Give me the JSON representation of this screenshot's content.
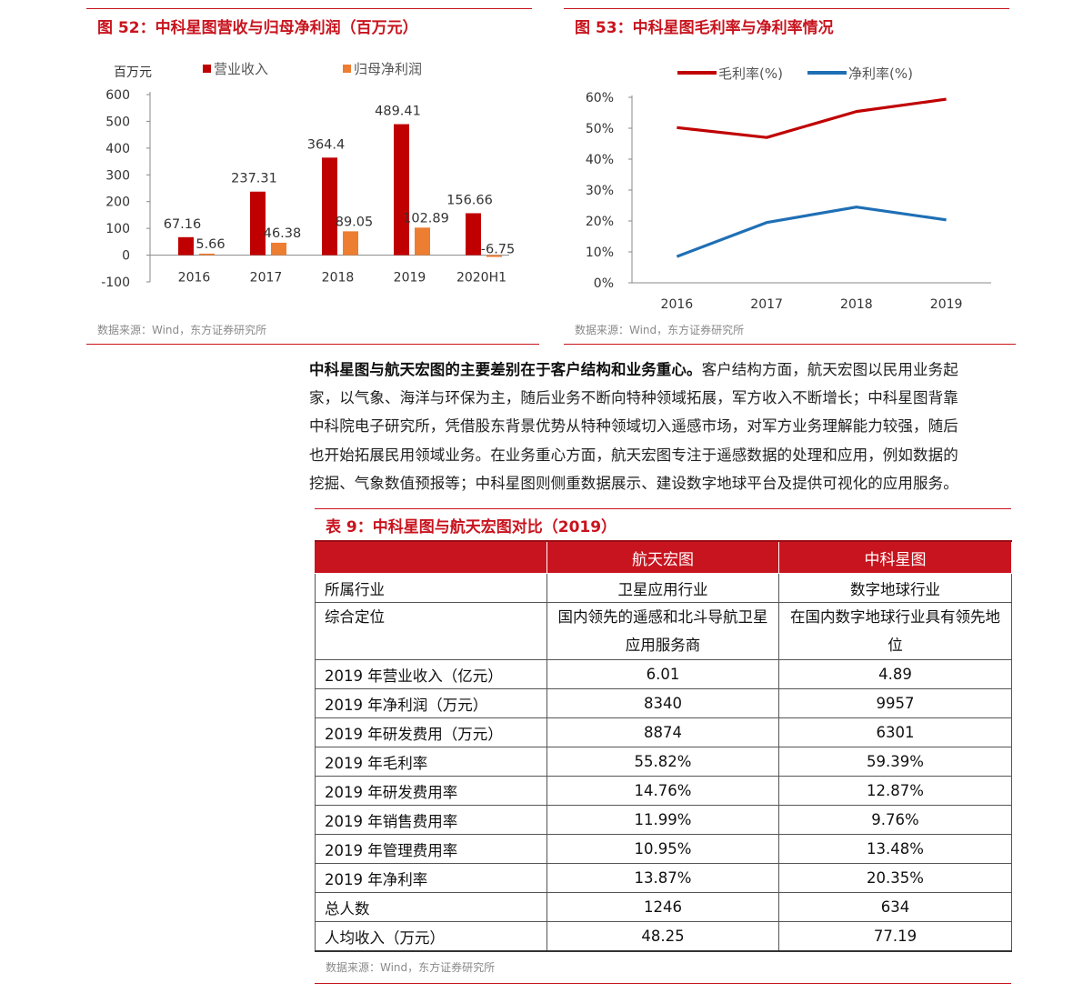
{
  "fig52": {
    "title": "图 52：中科星图营收与归母净利润（百万元）",
    "source": "数据来源：Wind，东方证券研究所",
    "unit_label": "百万元",
    "legend": [
      "营业收入",
      "归母净利润"
    ]
  },
  "fig53": {
    "title": "图 53：中科星图毛利率与净利率情况",
    "source": "数据来源：Wind，东方证券研究所",
    "legend": [
      "毛利率(%)",
      "净利率(%)"
    ]
  },
  "chart_data": [
    {
      "type": "bar",
      "title": "图 52：中科星图营收与归母净利润（百万元）",
      "ylabel": "百万元",
      "categories": [
        "2016",
        "2017",
        "2018",
        "2019",
        "2020H1"
      ],
      "series": [
        {
          "name": "营业收入",
          "color": "#c00000",
          "values": [
            67.16,
            237.31,
            364.4,
            489.41,
            156.66
          ]
        },
        {
          "name": "归母净利润",
          "color": "#ed7d31",
          "values": [
            5.66,
            46.38,
            89.05,
            102.89,
            -6.75
          ]
        }
      ],
      "ylim": [
        -100,
        600
      ],
      "yticks": [
        "-100",
        "0",
        "100",
        "200",
        "300",
        "400",
        "500",
        "600"
      ],
      "grid": false,
      "legend_position": "top"
    },
    {
      "type": "line",
      "title": "图 53：中科星图毛利率与净利率情况",
      "categories": [
        "2016",
        "2017",
        "2018",
        "2019"
      ],
      "series": [
        {
          "name": "毛利率(%)",
          "color": "#c00000",
          "values": [
            50.2,
            47.0,
            55.4,
            59.39
          ]
        },
        {
          "name": "净利率(%)",
          "color": "#1f6fb5",
          "values": [
            8.5,
            19.5,
            24.5,
            20.35
          ]
        }
      ],
      "ylim": [
        0,
        60
      ],
      "yticks": [
        "0%",
        "10%",
        "20%",
        "30%",
        "40%",
        "50%",
        "60%"
      ],
      "grid": false,
      "legend_position": "top"
    }
  ],
  "paragraph": {
    "lines": [
      {
        "bold": "中科星图与航天宏图的主要差别在于客户结构和业务重心。",
        "text": "客户结构方面，航天宏图以民用业务起"
      },
      {
        "bold": "",
        "text": "家，以气象、海洋与环保为主，随后业务不断向特种领域拓展，军方收入不断增长；中科星图背靠"
      },
      {
        "bold": "",
        "text": "中科院电子研究所，凭借股东背景优势从特种领域切入遥感市场，对军方业务理解能力较强，随后"
      },
      {
        "bold": "",
        "text": "也开始拓展民用领域业务。在业务重心方面，航天宏图专注于遥感数据的处理和应用，例如数据的"
      },
      {
        "bold": "",
        "text": "挖掘、气象数值预报等；中科星图则侧重数据展示、建设数字地球平台及提供可视化的应用服务。"
      }
    ]
  },
  "table9": {
    "title": "表 9：中科星图与航天宏图对比（2019）",
    "source": "数据来源：Wind，东方证券研究所",
    "headers": [
      "",
      "航天宏图",
      "中科星图"
    ],
    "rows": [
      [
        "所属行业",
        "卫星应用行业",
        "数字地球行业"
      ],
      [
        "综合定位",
        "国内领先的遥感和北斗导航卫星应用服务商",
        "在国内数字地球行业具有领先地位"
      ],
      [
        "2019 年营业收入（亿元）",
        "6.01",
        "4.89"
      ],
      [
        "2019 年净利润（万元）",
        "8340",
        "9957"
      ],
      [
        "2019 年研发费用（万元）",
        "8874",
        "6301"
      ],
      [
        "2019 年毛利率",
        "55.82%",
        "59.39%"
      ],
      [
        "2019 年研发费用率",
        "14.76%",
        "12.87%"
      ],
      [
        "2019 年销售费用率",
        "11.99%",
        "9.76%"
      ],
      [
        "2019 年管理费用率",
        "10.95%",
        "13.48%"
      ],
      [
        "2019 年净利率",
        "13.87%",
        "20.35%"
      ],
      [
        "总人数",
        "1246",
        "634"
      ],
      [
        "人均收入（万元）",
        "48.25",
        "77.19"
      ]
    ]
  }
}
